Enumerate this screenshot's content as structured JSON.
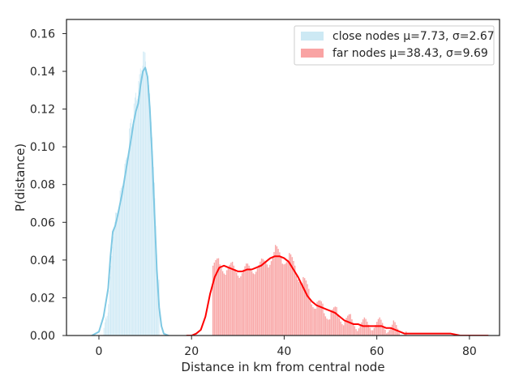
{
  "chart_data": {
    "type": "histogram",
    "xlabel": "Distance in km from central node",
    "ylabel": "P(distance)",
    "xlim": [
      -7,
      86.5
    ],
    "ylim": [
      0,
      0.1675
    ],
    "x_ticks": [
      0,
      20,
      40,
      60,
      80
    ],
    "y_ticks": [
      0.0,
      0.02,
      0.04,
      0.06,
      0.08,
      0.1,
      0.12,
      0.14,
      0.16
    ],
    "x_tick_labels": [
      "0",
      "20",
      "40",
      "60",
      "80"
    ],
    "y_tick_labels": [
      "0.00",
      "0.02",
      "0.04",
      "0.06",
      "0.08",
      "0.10",
      "0.12",
      "0.14",
      "0.16"
    ],
    "grid": false,
    "legend_position": "top-right",
    "series": [
      {
        "name": "close nodes μ=7.73, σ=2.67",
        "bar_color": "#cde9f4",
        "line_color": "#7ec8e3",
        "bin_width": 0.2,
        "histogram": [
          [
            1.0,
            0.004
          ],
          [
            1.5,
            0.008
          ],
          [
            2.0,
            0.018
          ],
          [
            2.5,
            0.035
          ],
          [
            3.0,
            0.055
          ],
          [
            3.5,
            0.062
          ],
          [
            4.0,
            0.066
          ],
          [
            4.5,
            0.073
          ],
          [
            5.0,
            0.08
          ],
          [
            5.5,
            0.087
          ],
          [
            6.0,
            0.094
          ],
          [
            6.5,
            0.106
          ],
          [
            7.0,
            0.114
          ],
          [
            7.5,
            0.12
          ],
          [
            8.0,
            0.127
          ],
          [
            8.5,
            0.133
          ],
          [
            9.0,
            0.14
          ],
          [
            9.5,
            0.15
          ],
          [
            10.0,
            0.145
          ],
          [
            10.5,
            0.138
          ],
          [
            11.0,
            0.12
          ],
          [
            11.5,
            0.1
          ],
          [
            12.0,
            0.07
          ],
          [
            12.5,
            0.03
          ]
        ],
        "density_curve": [
          [
            -1.5,
            0.0
          ],
          [
            0.0,
            0.002
          ],
          [
            1.0,
            0.01
          ],
          [
            2.0,
            0.025
          ],
          [
            2.5,
            0.042
          ],
          [
            3.0,
            0.055
          ],
          [
            3.5,
            0.058
          ],
          [
            4.0,
            0.063
          ],
          [
            5.0,
            0.075
          ],
          [
            6.0,
            0.09
          ],
          [
            7.0,
            0.105
          ],
          [
            7.5,
            0.113
          ],
          [
            8.0,
            0.119
          ],
          [
            8.5,
            0.123
          ],
          [
            9.0,
            0.133
          ],
          [
            9.5,
            0.14
          ],
          [
            10.0,
            0.142
          ],
          [
            10.5,
            0.137
          ],
          [
            11.0,
            0.12
          ],
          [
            11.5,
            0.095
          ],
          [
            12.0,
            0.065
          ],
          [
            12.5,
            0.035
          ],
          [
            13.0,
            0.015
          ],
          [
            13.5,
            0.005
          ],
          [
            14.0,
            0.001
          ],
          [
            15.0,
            0.0
          ]
        ]
      },
      {
        "name": "far nodes μ=38.43, σ=9.69",
        "bar_color": "#f9a3a3",
        "line_color": "#ff0000",
        "bin_width": 0.3,
        "histogram": [
          [
            24.5,
            0.037
          ],
          [
            26.0,
            0.037
          ],
          [
            27.5,
            0.036
          ],
          [
            29.0,
            0.035
          ],
          [
            30.5,
            0.034
          ],
          [
            32.0,
            0.035
          ],
          [
            33.5,
            0.036
          ],
          [
            35.0,
            0.037
          ],
          [
            36.5,
            0.04
          ],
          [
            38.0,
            0.044
          ],
          [
            39.5,
            0.042
          ],
          [
            41.0,
            0.04
          ],
          [
            42.5,
            0.035
          ],
          [
            44.0,
            0.028
          ],
          [
            45.5,
            0.021
          ],
          [
            47.0,
            0.016
          ],
          [
            48.5,
            0.013
          ],
          [
            50.0,
            0.012
          ],
          [
            51.5,
            0.011
          ],
          [
            53.0,
            0.009
          ],
          [
            54.5,
            0.007
          ],
          [
            56.0,
            0.006
          ],
          [
            57.5,
            0.006
          ],
          [
            59.0,
            0.006
          ],
          [
            60.5,
            0.006
          ],
          [
            62.0,
            0.005
          ],
          [
            63.5,
            0.004
          ],
          [
            65.0,
            0.002
          ]
        ],
        "density_curve": [
          [
            19.0,
            0.0
          ],
          [
            20.0,
            0.0
          ],
          [
            21.0,
            0.001
          ],
          [
            22.0,
            0.003
          ],
          [
            23.0,
            0.01
          ],
          [
            24.0,
            0.022
          ],
          [
            25.0,
            0.031
          ],
          [
            26.0,
            0.036
          ],
          [
            27.0,
            0.037
          ],
          [
            28.0,
            0.036
          ],
          [
            29.0,
            0.035
          ],
          [
            30.0,
            0.034
          ],
          [
            31.0,
            0.034
          ],
          [
            32.0,
            0.035
          ],
          [
            33.0,
            0.035
          ],
          [
            34.0,
            0.036
          ],
          [
            35.0,
            0.037
          ],
          [
            36.0,
            0.039
          ],
          [
            37.0,
            0.041
          ],
          [
            38.0,
            0.042
          ],
          [
            39.0,
            0.042
          ],
          [
            40.0,
            0.041
          ],
          [
            41.0,
            0.039
          ],
          [
            42.0,
            0.035
          ],
          [
            43.0,
            0.031
          ],
          [
            44.0,
            0.026
          ],
          [
            45.0,
            0.021
          ],
          [
            46.0,
            0.018
          ],
          [
            47.0,
            0.016
          ],
          [
            48.0,
            0.015
          ],
          [
            49.0,
            0.014
          ],
          [
            50.0,
            0.013
          ],
          [
            51.0,
            0.012
          ],
          [
            52.0,
            0.01
          ],
          [
            53.0,
            0.008
          ],
          [
            54.0,
            0.007
          ],
          [
            55.0,
            0.006
          ],
          [
            56.0,
            0.006
          ],
          [
            57.0,
            0.005
          ],
          [
            58.0,
            0.005
          ],
          [
            59.0,
            0.005
          ],
          [
            60.0,
            0.005
          ],
          [
            61.0,
            0.005
          ],
          [
            62.0,
            0.004
          ],
          [
            63.0,
            0.004
          ],
          [
            64.0,
            0.003
          ],
          [
            65.0,
            0.002
          ],
          [
            66.0,
            0.001
          ],
          [
            68.0,
            0.001
          ],
          [
            70.0,
            0.001
          ],
          [
            72.0,
            0.001
          ],
          [
            74.0,
            0.001
          ],
          [
            76.0,
            0.001
          ],
          [
            78.0,
            0.0
          ],
          [
            80.0,
            0.0
          ],
          [
            84.0,
            0.0
          ]
        ]
      }
    ]
  }
}
